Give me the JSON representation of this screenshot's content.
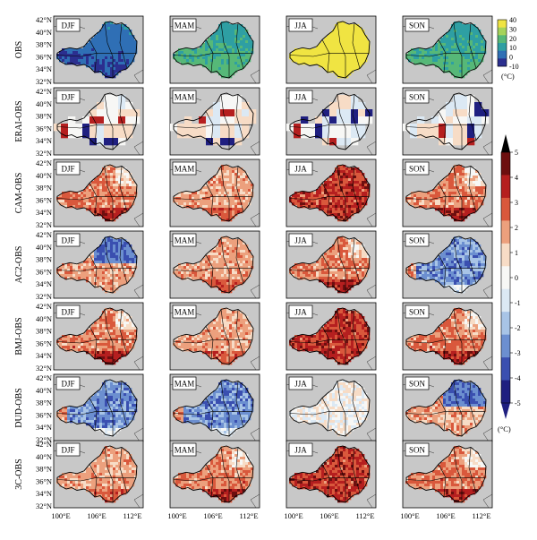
{
  "rows": [
    {
      "label": "OBS",
      "scheme": "temp",
      "fields": [
        "winter_cold",
        "mild",
        "hot",
        "mild"
      ]
    },
    {
      "label": "ERAI-OBS",
      "scheme": "diff",
      "fields": [
        "blocky",
        "blocky",
        "blocky",
        "blocky"
      ]
    },
    {
      "label": "CAM-OBS",
      "scheme": "diff",
      "fields": [
        "warm_mod",
        "warm_light",
        "warm_strong",
        "warm_mod"
      ]
    },
    {
      "label": "AC2-OBS",
      "scheme": "diff",
      "fields": [
        "cold_north",
        "warm_light",
        "warm_mod",
        "cold_strong"
      ]
    },
    {
      "label": "BMJ-OBS",
      "scheme": "diff",
      "fields": [
        "warm_mod",
        "warm_light",
        "warm_strong",
        "warm_mod"
      ]
    },
    {
      "label": "DUD-OBS",
      "scheme": "diff",
      "fields": [
        "cold_strong",
        "cold_strong",
        "mixed_light",
        "cold_north"
      ]
    },
    {
      "label": "3C-OBS",
      "scheme": "diff",
      "fields": [
        "warm_light",
        "warm_mod",
        "warm_strong",
        "warm_mod"
      ]
    }
  ],
  "seasons": [
    "DJF",
    "MAM",
    "JJA",
    "SON"
  ],
  "lat_ticks": [
    "42°N",
    "40°N",
    "38°N",
    "36°N",
    "34°N",
    "32°N"
  ],
  "lon_ticks": [
    "100°E",
    "106°E",
    "112°E"
  ],
  "temp_colorbar": {
    "ticks": [
      "40",
      "30",
      "20",
      "10",
      "0",
      "-10"
    ],
    "unit": "(°C)"
  },
  "diff_colorbar": {
    "ticks": [
      "5",
      "4",
      "3",
      "2",
      "1",
      "0",
      "-1",
      "-2",
      "-3",
      "-4",
      "-5"
    ],
    "unit": "(°C)"
  },
  "colors": {
    "land_outside": "#c8c8c8",
    "border": "#000000",
    "temp_ramp": [
      "#2b2f8f",
      "#2f6fb5",
      "#2e9fa3",
      "#56b878",
      "#a5d35a",
      "#f0e442"
    ],
    "diff_ramp": [
      "#1f1f80",
      "#3a4fb0",
      "#6c8fd0",
      "#a8c4e6",
      "#dce9f4",
      "#f7f7f5",
      "#f7dcc6",
      "#eca07d",
      "#d9583c",
      "#b51f1f",
      "#6d0f0f"
    ]
  }
}
